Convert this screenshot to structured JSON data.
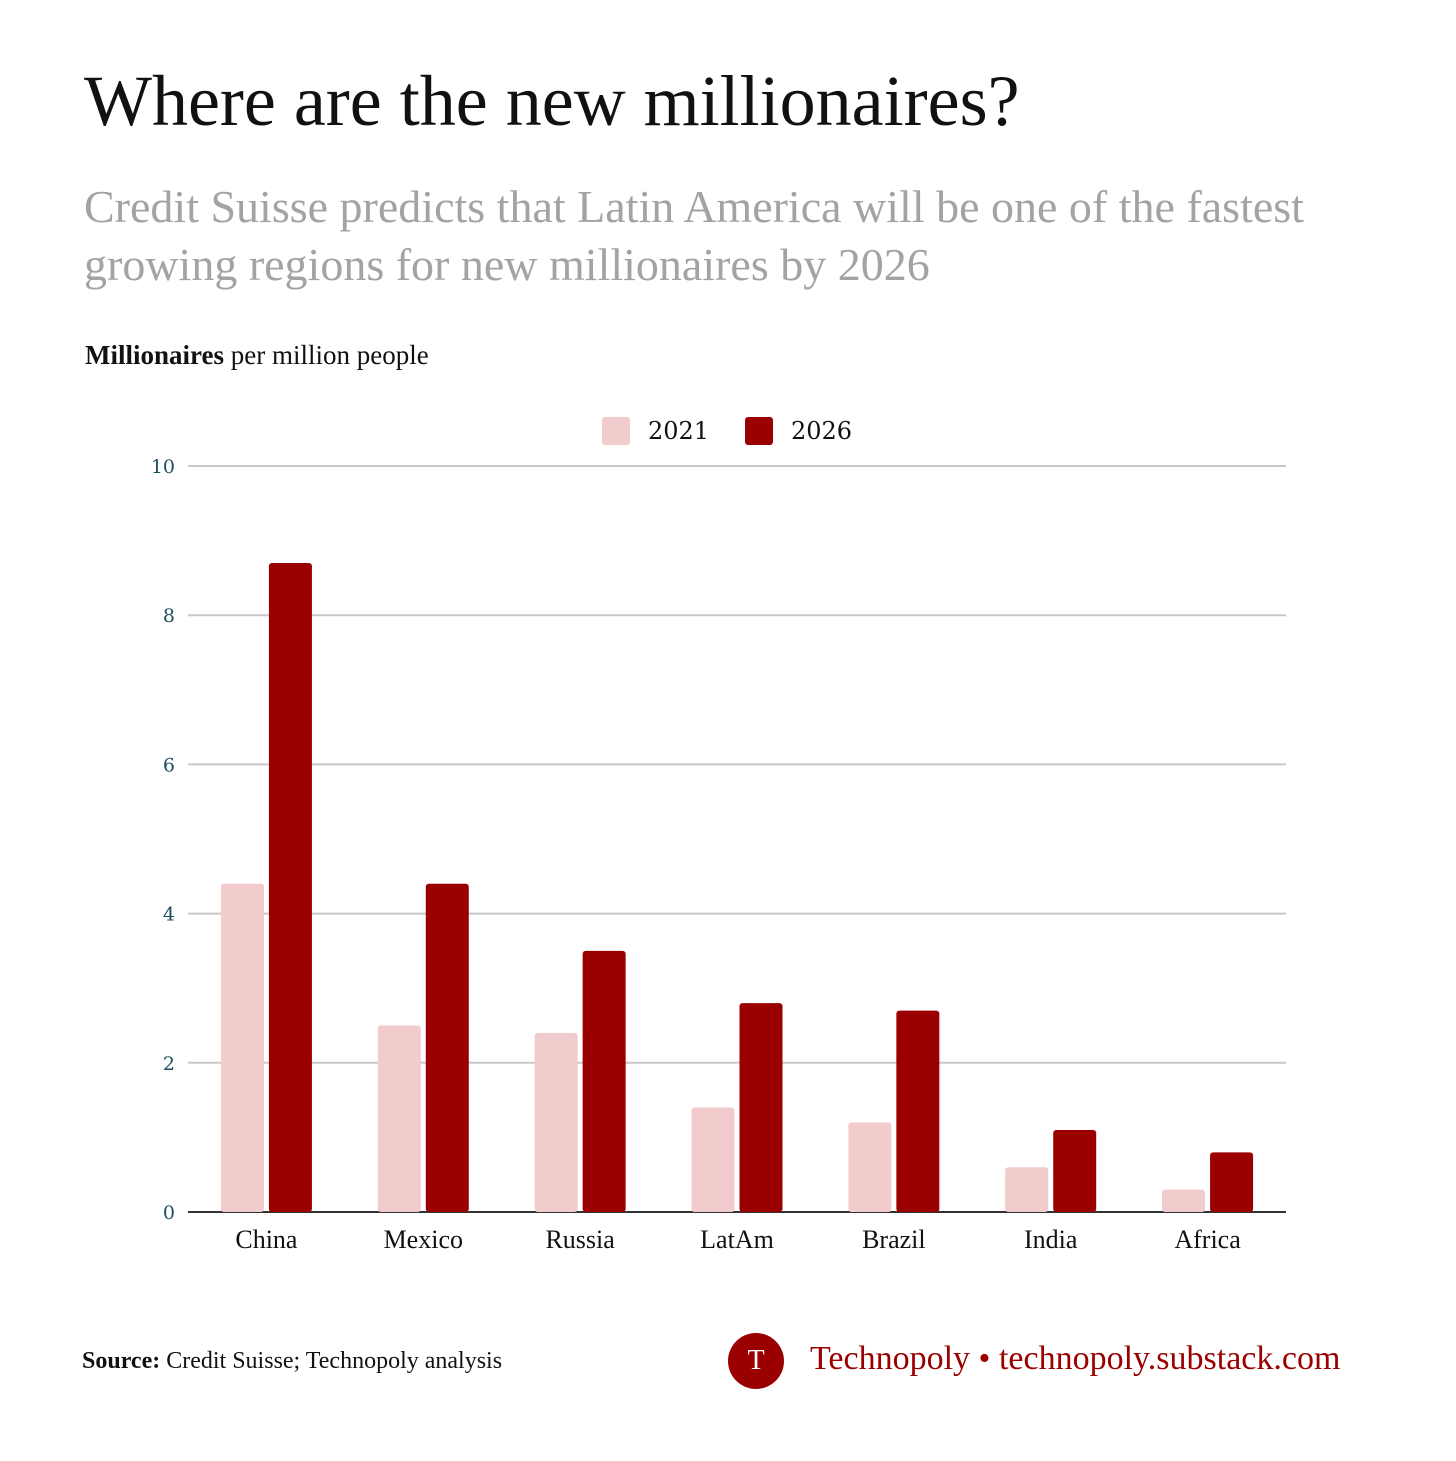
{
  "header": {
    "title": "Where are the new millionaires?",
    "subtitle": "Credit Suisse predicts that Latin America will be one of the fastest growing regions for new millionaires by 2026"
  },
  "unit_label": {
    "bold": "Millionaires",
    "rest": " per million people"
  },
  "footer": {
    "source_label": "Source:",
    "source_text": " Credit Suisse; Technopoly analysis",
    "logo_letter": "T",
    "brand_name": "Technopoly",
    "separator": "•",
    "brand_url": "technopoly.substack.com"
  },
  "colors": {
    "series_2021": "#f2cbcc",
    "series_2026": "#9b0000",
    "grid": "#c8c8c8",
    "axis_tick": "#1f4e5f"
  },
  "chart_data": {
    "type": "bar",
    "categories": [
      "China",
      "Mexico",
      "Russia",
      "LatAm",
      "Brazil",
      "India",
      "Africa"
    ],
    "series": [
      {
        "name": "2021",
        "values": [
          4.4,
          2.5,
          2.4,
          1.4,
          1.2,
          0.6,
          0.3
        ]
      },
      {
        "name": "2026",
        "values": [
          8.7,
          4.4,
          3.5,
          2.8,
          2.7,
          1.1,
          0.8
        ]
      }
    ],
    "title": "",
    "xlabel": "",
    "ylabel": "",
    "ylim": [
      0,
      10
    ],
    "yticks": [
      0,
      2,
      4,
      6,
      8,
      10
    ],
    "grid": true,
    "legend": "top-center"
  }
}
